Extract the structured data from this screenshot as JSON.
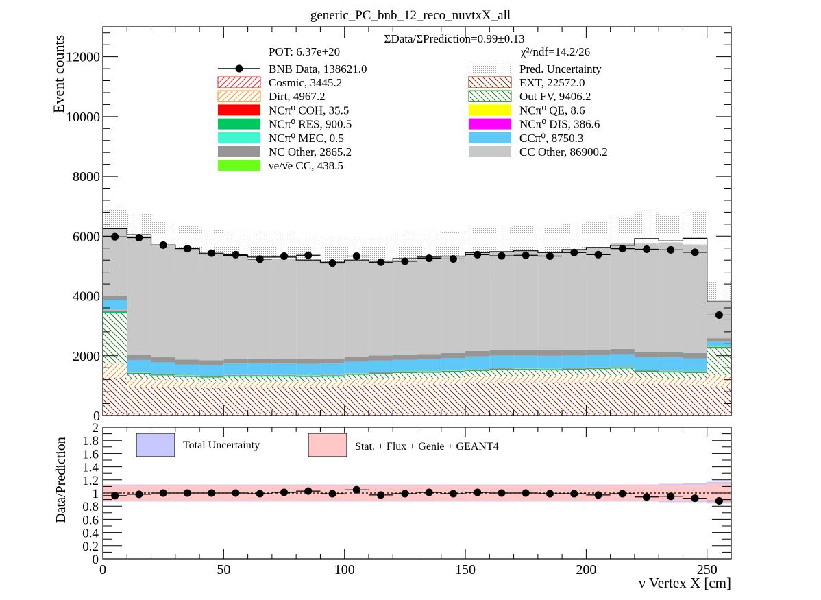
{
  "title": "generic_PC_bnb_12_reco_nuvtxX_all",
  "colors": {
    "cc_other": "#c8c8c8",
    "ccpi0": "#5ec8f8",
    "nc_other": "#969696",
    "nue": "#6cff18",
    "ncpi0_res": "#00c860",
    "ncpi0_mec": "#40f8d0",
    "ncpi0_coh": "#ff0000",
    "ncpi0_qe": "#ffff00",
    "ncpi0_dis": "#ff00ff",
    "ext": "#8b2500",
    "cosmic": "#ff2020",
    "dirt": "#ff8c1a",
    "outfv": "#208020",
    "uncert_total": "#c8c8ff",
    "uncert_stat": "#ffc8c8"
  },
  "top_panel": {
    "ylabel": "Event counts",
    "ratio_text": "ΣData/ΣPrediction=0.99±0.13",
    "pot_text": "POT: 6.37e+20",
    "chi2_text": "χ²/ndf=14.2/26",
    "legend": [
      {
        "label": "BNB Data, 138621.0",
        "style": "data"
      },
      {
        "label": "Pred. Uncertainty",
        "style": "dots"
      },
      {
        "label": "Cosmic, 3445.2",
        "style": "hatch",
        "color": "#ff2020"
      },
      {
        "label": "EXT, 22572.0",
        "style": "hatch",
        "color": "#8b2500"
      },
      {
        "label": "Dirt, 4967.2",
        "style": "hatch",
        "color": "#ff8c1a"
      },
      {
        "label": "Out FV, 9406.2",
        "style": "hatch",
        "color": "#208020"
      },
      {
        "label": "NCπ⁰ COH,  35.5",
        "style": "fill",
        "color": "#ff0000"
      },
      {
        "label": "NCπ⁰ QE,  8.6",
        "style": "fill",
        "color": "#ffff00"
      },
      {
        "label": "NCπ⁰ RES,  900.5",
        "style": "fill",
        "color": "#00c860"
      },
      {
        "label": "NCπ⁰ DIS,  386.6",
        "style": "fill",
        "color": "#ff00ff"
      },
      {
        "label": "NCπ⁰ MEC,  0.5",
        "style": "fill",
        "color": "#40f8d0"
      },
      {
        "label": "CCπ⁰, 8750.3",
        "style": "fill",
        "color": "#5ec8f8"
      },
      {
        "label": "NC Other, 2865.2",
        "style": "fill",
        "color": "#969696"
      },
      {
        "label": "CC Other, 86900.2",
        "style": "fill",
        "color": "#c8c8c8"
      },
      {
        "label": "νe/ν̄e CC, 438.5",
        "style": "fill",
        "color": "#6cff18"
      }
    ]
  },
  "bottom_panel": {
    "ylabel": "Data/Prediction",
    "legend_total": "Total Uncertainty",
    "legend_stat": "Stat. + Flux + Genie + GEANT4"
  },
  "xlabel": "ν Vertex X [cm]",
  "chart_data": [
    {
      "type": "bar",
      "stacked": true,
      "title": "generic_PC_bnb_12_reco_nuvtxX_all",
      "ylabel": "Event counts",
      "xlim": [
        0,
        260
      ],
      "ylim": [
        0,
        13000
      ],
      "x_ticks": [
        0,
        50,
        100,
        150,
        200,
        250
      ],
      "y_ticks": [
        0,
        2000,
        4000,
        6000,
        8000,
        10000,
        12000
      ],
      "y_tick_labels": [
        "0",
        "2000",
        "4000",
        "6000",
        "8000",
        "10000",
        "12000"
      ],
      "bin_edges": [
        0,
        10,
        20,
        30,
        40,
        50,
        60,
        70,
        80,
        90,
        100,
        110,
        120,
        130,
        140,
        150,
        160,
        170,
        180,
        190,
        200,
        210,
        220,
        230,
        240,
        250,
        260
      ],
      "series": [
        {
          "name": "Cosmic",
          "values": [
            90,
            60,
            60,
            60,
            60,
            60,
            60,
            60,
            60,
            60,
            60,
            60,
            60,
            60,
            60,
            60,
            60,
            60,
            60,
            60,
            60,
            60,
            60,
            60,
            60,
            60
          ]
        },
        {
          "name": "EXT",
          "values": [
            1180,
            900,
            880,
            870,
            860,
            880,
            870,
            880,
            880,
            900,
            940,
            960,
            980,
            990,
            1000,
            1030,
            1050,
            1050,
            1050,
            1050,
            1070,
            1050,
            1000,
            980,
            960,
            900
          ]
        },
        {
          "name": "Dirt",
          "values": [
            460,
            260,
            250,
            230,
            200,
            200,
            200,
            200,
            190,
            190,
            200,
            200,
            200,
            200,
            200,
            200,
            200,
            200,
            200,
            200,
            200,
            230,
            200,
            200,
            200,
            380
          ]
        },
        {
          "name": "Out FV",
          "values": [
            1690,
            160,
            150,
            130,
            150,
            160,
            170,
            160,
            160,
            150,
            160,
            170,
            180,
            180,
            190,
            200,
            220,
            210,
            200,
            220,
            220,
            230,
            200,
            200,
            200,
            900
          ]
        },
        {
          "name": "NCπ⁰ COH",
          "values": [
            2,
            1,
            1,
            1,
            1,
            1,
            1,
            1,
            1,
            1,
            1,
            1,
            1,
            1,
            1,
            1,
            1,
            1,
            1,
            1,
            1,
            1,
            1,
            1,
            1,
            2
          ]
        },
        {
          "name": "NCπ⁰ QE",
          "values": [
            1,
            0,
            0,
            0,
            0,
            0,
            0,
            0,
            0,
            0,
            0,
            0,
            0,
            0,
            0,
            0,
            0,
            0,
            0,
            0,
            0,
            0,
            0,
            0,
            0,
            1
          ]
        },
        {
          "name": "NCπ⁰ RES",
          "values": [
            60,
            30,
            30,
            30,
            30,
            30,
            30,
            30,
            30,
            30,
            30,
            30,
            30,
            30,
            30,
            30,
            30,
            30,
            30,
            30,
            30,
            30,
            30,
            30,
            30,
            40
          ]
        },
        {
          "name": "NCπ⁰ DIS",
          "values": [
            25,
            12,
            12,
            12,
            12,
            12,
            12,
            12,
            12,
            12,
            12,
            12,
            12,
            12,
            12,
            12,
            12,
            12,
            12,
            12,
            12,
            12,
            12,
            12,
            12,
            15
          ]
        },
        {
          "name": "NCπ⁰ MEC",
          "values": [
            0,
            0,
            0,
            0,
            0,
            0,
            0,
            0,
            0,
            0,
            0,
            0,
            0,
            0,
            0,
            0,
            0,
            0,
            0,
            0,
            0,
            0,
            0,
            0,
            0,
            0
          ]
        },
        {
          "name": "νe/ν̄e CC",
          "values": [
            30,
            15,
            15,
            15,
            15,
            15,
            15,
            15,
            15,
            15,
            15,
            15,
            15,
            15,
            15,
            15,
            15,
            15,
            15,
            15,
            15,
            15,
            15,
            15,
            15,
            20
          ]
        },
        {
          "name": "CCπ⁰",
          "values": [
            330,
            420,
            380,
            360,
            360,
            380,
            390,
            380,
            380,
            380,
            380,
            390,
            390,
            400,
            410,
            430,
            420,
            430,
            430,
            420,
            420,
            420,
            440,
            450,
            430,
            150
          ]
        },
        {
          "name": "NC Other",
          "values": [
            140,
            180,
            170,
            160,
            160,
            160,
            160,
            160,
            160,
            160,
            170,
            170,
            170,
            170,
            170,
            180,
            180,
            180,
            180,
            180,
            180,
            180,
            180,
            180,
            180,
            120
          ]
        },
        {
          "name": "CC Other",
          "values": [
            2242,
            3974,
            3742,
            3692,
            3532,
            3452,
            3342,
            3352,
            3302,
            3232,
            3192,
            3122,
            3172,
            3232,
            3242,
            3282,
            3292,
            3322,
            3272,
            3362,
            3402,
            3532,
            3612,
            3662,
            3632,
            1262
          ]
        }
      ],
      "prediction_total": [
        6250,
        6050,
        5700,
        5600,
        5400,
        5350,
        5300,
        5300,
        5200,
        5130,
        5200,
        5170,
        5250,
        5300,
        5330,
        5450,
        5480,
        5510,
        5450,
        5550,
        5620,
        5690,
        5920,
        5840,
        5930,
        3800
      ],
      "uncertainty_upper": [
        7000,
        6750,
        6500,
        6350,
        6200,
        6100,
        6050,
        6050,
        6000,
        5950,
        6000,
        6000,
        6050,
        6100,
        6150,
        6300,
        6300,
        6350,
        6300,
        6400,
        6500,
        6600,
        6800,
        6700,
        6850,
        4500
      ],
      "uncertainty_lower": [
        5500,
        5350,
        4950,
        4850,
        4650,
        4600,
        4550,
        4550,
        4450,
        4350,
        4400,
        4350,
        4450,
        4500,
        4500,
        4600,
        4650,
        4650,
        4600,
        4700,
        4750,
        4800,
        5050,
        4950,
        5050,
        3100
      ],
      "data": {
        "name": "BNB Data",
        "x": [
          5,
          15,
          25,
          35,
          45,
          55,
          65,
          75,
          85,
          95,
          105,
          115,
          125,
          135,
          145,
          155,
          165,
          175,
          185,
          195,
          205,
          215,
          225,
          235,
          245,
          255
        ],
        "y": [
          5980,
          5950,
          5700,
          5580,
          5430,
          5380,
          5230,
          5330,
          5360,
          5100,
          5330,
          5130,
          5160,
          5260,
          5240,
          5380,
          5340,
          5360,
          5330,
          5450,
          5380,
          5580,
          5560,
          5540,
          5460,
          3360
        ]
      }
    },
    {
      "type": "scatter",
      "ylabel": "Data/Prediction",
      "xlabel": "ν Vertex X [cm]",
      "xlim": [
        0,
        260
      ],
      "ylim": [
        0,
        2
      ],
      "x_ticks": [
        0,
        50,
        100,
        150,
        200,
        250
      ],
      "y_ticks": [
        0,
        0.2,
        0.4,
        0.6,
        0.8,
        1,
        1.2,
        1.4,
        1.6,
        1.8,
        2
      ],
      "y_tick_labels": [
        "0",
        "0.2",
        "0.4",
        "0.6",
        "0.8",
        "1",
        "1.2",
        "1.4",
        "1.6",
        "1.8",
        "2"
      ],
      "reference_line": 1,
      "x": [
        5,
        15,
        25,
        35,
        45,
        55,
        65,
        75,
        85,
        95,
        105,
        115,
        125,
        135,
        145,
        155,
        165,
        175,
        185,
        195,
        205,
        215,
        225,
        235,
        245,
        255
      ],
      "y": [
        0.96,
        0.98,
        1.0,
        1.0,
        1.0,
        1.0,
        0.99,
        1.01,
        1.03,
        0.99,
        1.05,
        0.97,
        0.99,
        1.01,
        0.99,
        1.01,
        1.0,
        1.0,
        0.99,
        0.99,
        0.97,
        0.99,
        0.94,
        0.95,
        0.92,
        0.88
      ],
      "band_total": {
        "lower": [
          0.87,
          0.87,
          0.87,
          0.87,
          0.87,
          0.87,
          0.87,
          0.87,
          0.87,
          0.87,
          0.87,
          0.87,
          0.87,
          0.87,
          0.87,
          0.87,
          0.87,
          0.87,
          0.87,
          0.87,
          0.87,
          0.87,
          0.87,
          0.86,
          0.86,
          0.84
        ],
        "upper": [
          1.13,
          1.13,
          1.13,
          1.13,
          1.13,
          1.13,
          1.13,
          1.13,
          1.13,
          1.13,
          1.13,
          1.13,
          1.13,
          1.13,
          1.13,
          1.13,
          1.13,
          1.13,
          1.13,
          1.13,
          1.13,
          1.13,
          1.13,
          1.14,
          1.15,
          1.17
        ]
      },
      "band_stat": {
        "lower": [
          0.88,
          0.88,
          0.88,
          0.88,
          0.88,
          0.88,
          0.88,
          0.88,
          0.88,
          0.88,
          0.88,
          0.88,
          0.88,
          0.88,
          0.88,
          0.88,
          0.88,
          0.88,
          0.88,
          0.88,
          0.88,
          0.88,
          0.88,
          0.88,
          0.88,
          0.86
        ],
        "upper": [
          1.12,
          1.12,
          1.12,
          1.12,
          1.12,
          1.12,
          1.12,
          1.12,
          1.12,
          1.12,
          1.12,
          1.12,
          1.12,
          1.12,
          1.12,
          1.12,
          1.12,
          1.12,
          1.12,
          1.12,
          1.12,
          1.12,
          1.12,
          1.12,
          1.12,
          1.14
        ]
      }
    }
  ]
}
